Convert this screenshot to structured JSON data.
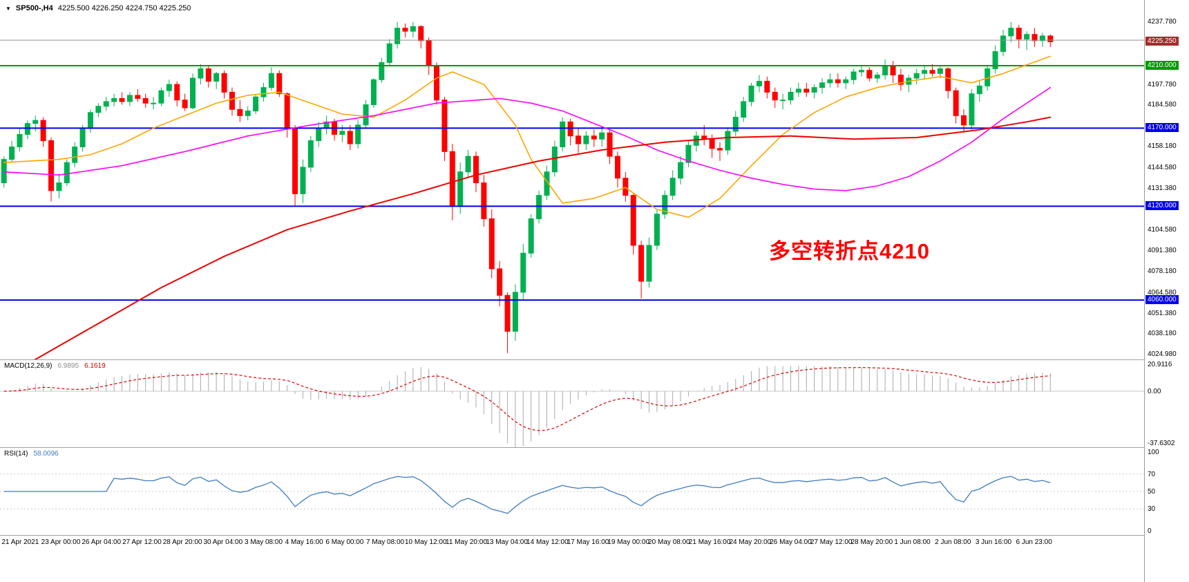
{
  "header": {
    "symbol_period": "SP500-,H4",
    "ohlc": "4225.500 4226.250 4224.750 4225.250"
  },
  "annotation": {
    "text": "多空转折点4210",
    "color": "#ff0000"
  },
  "current_price": {
    "value": 4225.25,
    "label": "4225.250",
    "bg": "#a52a2a"
  },
  "hlines": [
    {
      "name": "gray-level-line",
      "price": 4226.3,
      "color": "#909090",
      "width": 1
    },
    {
      "name": "green-line-4210",
      "price": 4210.0,
      "color": "#009900",
      "width": 2
    },
    {
      "name": "blue-line-4170",
      "price": 4170.0,
      "color": "#0000ee",
      "width": 2
    },
    {
      "name": "blue-line-4120",
      "price": 4120.0,
      "color": "#0000ee",
      "width": 2
    },
    {
      "name": "blue-line-4060",
      "price": 4060.0,
      "color": "#0000ee",
      "width": 2
    }
  ],
  "price_axis": {
    "labels": [
      {
        "text": "4237.780",
        "price": 4237.78,
        "style": "plain"
      },
      {
        "text": "4225.250",
        "price": 4225.25,
        "style": "tag",
        "bg": "#a52a2a"
      },
      {
        "text": "4210.000",
        "price": 4210.0,
        "style": "tag",
        "bg": "#009900"
      },
      {
        "text": "4197.780",
        "price": 4197.78,
        "style": "plain"
      },
      {
        "text": "4184.580",
        "price": 4184.58,
        "style": "plain"
      },
      {
        "text": "4170.000",
        "price": 4170.0,
        "style": "tag",
        "bg": "#0000ee"
      },
      {
        "text": "4158.180",
        "price": 4158.18,
        "style": "plain"
      },
      {
        "text": "4144.580",
        "price": 4144.58,
        "style": "plain"
      },
      {
        "text": "4131.380",
        "price": 4131.38,
        "style": "plain"
      },
      {
        "text": "4120.000",
        "price": 4120.0,
        "style": "tag",
        "bg": "#0000ee"
      },
      {
        "text": "4104.580",
        "price": 4104.58,
        "style": "plain"
      },
      {
        "text": "4091.380",
        "price": 4091.38,
        "style": "plain"
      },
      {
        "text": "4078.180",
        "price": 4078.18,
        "style": "plain"
      },
      {
        "text": "4064.580",
        "price": 4064.58,
        "style": "plain"
      },
      {
        "text": "4060.000",
        "price": 4060.0,
        "style": "tag",
        "bg": "#0000ee"
      },
      {
        "text": "4051.380",
        "price": 4051.38,
        "style": "plain"
      },
      {
        "text": "4038.180",
        "price": 4038.18,
        "style": "plain"
      },
      {
        "text": "4024.980",
        "price": 4024.98,
        "style": "plain"
      }
    ]
  },
  "chart_data": {
    "type": "candlestick",
    "symbol": "SP500-",
    "timeframe": "H4",
    "price_range": {
      "min": 4022.0,
      "max": 4252.0
    },
    "candle_colors": {
      "up": "#00b050",
      "down": "#fe0000"
    },
    "candles": [
      [
        4135,
        4152,
        4132,
        4150
      ],
      [
        4150,
        4162,
        4148,
        4158
      ],
      [
        4158,
        4170,
        4155,
        4166
      ],
      [
        4166,
        4175,
        4163,
        4173
      ],
      [
        4173,
        4178,
        4168,
        4175
      ],
      [
        4175,
        4177,
        4158,
        4162
      ],
      [
        4162,
        4164,
        4123,
        4130
      ],
      [
        4130,
        4141,
        4125,
        4135
      ],
      [
        4135,
        4150,
        4133,
        4148
      ],
      [
        4148,
        4161,
        4145,
        4158
      ],
      [
        4158,
        4172,
        4155,
        4170
      ],
      [
        4170,
        4182,
        4167,
        4180
      ],
      [
        4180,
        4186,
        4177,
        4184
      ],
      [
        4184,
        4190,
        4181,
        4187
      ],
      [
        4187,
        4192,
        4184,
        4189
      ],
      [
        4189,
        4193,
        4185,
        4187
      ],
      [
        4187,
        4193,
        4184,
        4191
      ],
      [
        4191,
        4195,
        4187,
        4189
      ],
      [
        4189,
        4192,
        4183,
        4186
      ],
      [
        4186,
        4190,
        4182,
        4186
      ],
      [
        4186,
        4196,
        4184,
        4194
      ],
      [
        4194,
        4201,
        4190,
        4198
      ],
      [
        4198,
        4200,
        4184,
        4188
      ],
      [
        4188,
        4192,
        4181,
        4183
      ],
      [
        4183,
        4205,
        4182,
        4202
      ],
      [
        4202,
        4211,
        4198,
        4208
      ],
      [
        4208,
        4210,
        4196,
        4200
      ],
      [
        4200,
        4206,
        4195,
        4205
      ],
      [
        4205,
        4207,
        4189,
        4193
      ],
      [
        4193,
        4196,
        4178,
        4182
      ],
      [
        4182,
        4188,
        4174,
        4178
      ],
      [
        4178,
        4184,
        4175,
        4181
      ],
      [
        4181,
        4192,
        4179,
        4190
      ],
      [
        4190,
        4199,
        4187,
        4196
      ],
      [
        4196,
        4209,
        4194,
        4205
      ],
      [
        4205,
        4207,
        4190,
        4192
      ],
      [
        4192,
        4193,
        4164,
        4170
      ],
      [
        4170,
        4172,
        4120,
        4128
      ],
      [
        4128,
        4150,
        4122,
        4145
      ],
      [
        4145,
        4165,
        4142,
        4162
      ],
      [
        4162,
        4174,
        4158,
        4170
      ],
      [
        4170,
        4178,
        4166,
        4174
      ],
      [
        4174,
        4176,
        4162,
        4166
      ],
      [
        4166,
        4172,
        4161,
        4168
      ],
      [
        4168,
        4172,
        4156,
        4160
      ],
      [
        4160,
        4175,
        4157,
        4172
      ],
      [
        4172,
        4188,
        4170,
        4185
      ],
      [
        4185,
        4202,
        4183,
        4201
      ],
      [
        4201,
        4215,
        4199,
        4212
      ],
      [
        4212,
        4227,
        4210,
        4224
      ],
      [
        4224,
        4238,
        4221,
        4234
      ],
      [
        4234,
        4237,
        4228,
        4232
      ],
      [
        4232,
        4238,
        4228,
        4235
      ],
      [
        4235,
        4236,
        4221,
        4226
      ],
      [
        4226,
        4228,
        4204,
        4210
      ],
      [
        4210,
        4212,
        4185,
        4188
      ],
      [
        4188,
        4190,
        4149,
        4155
      ],
      [
        4155,
        4160,
        4111,
        4120
      ],
      [
        4120,
        4148,
        4115,
        4142
      ],
      [
        4142,
        4156,
        4138,
        4152
      ],
      [
        4152,
        4155,
        4129,
        4135
      ],
      [
        4135,
        4140,
        4107,
        4112
      ],
      [
        4112,
        4118,
        4074,
        4080
      ],
      [
        4080,
        4085,
        4056,
        4063
      ],
      [
        4063,
        4065,
        4026,
        4040
      ],
      [
        4040,
        4070,
        4034,
        4065
      ],
      [
        4065,
        4096,
        4060,
        4090
      ],
      [
        4090,
        4115,
        4087,
        4112
      ],
      [
        4112,
        4130,
        4109,
        4127
      ],
      [
        4127,
        4146,
        4124,
        4142
      ],
      [
        4142,
        4162,
        4139,
        4158
      ],
      [
        4158,
        4177,
        4155,
        4174
      ],
      [
        4174,
        4176,
        4159,
        4165
      ],
      [
        4165,
        4170,
        4154,
        4160
      ],
      [
        4160,
        4168,
        4156,
        4165
      ],
      [
        4165,
        4169,
        4158,
        4163
      ],
      [
        4163,
        4171,
        4158,
        4167
      ],
      [
        4167,
        4169,
        4147,
        4152
      ],
      [
        4152,
        4155,
        4132,
        4138
      ],
      [
        4138,
        4142,
        4123,
        4127
      ],
      [
        4127,
        4128,
        4089,
        4095
      ],
      [
        4095,
        4098,
        4061,
        4072
      ],
      [
        4072,
        4100,
        4068,
        4095
      ],
      [
        4095,
        4118,
        4092,
        4115
      ],
      [
        4115,
        4130,
        4112,
        4127
      ],
      [
        4127,
        4143,
        4124,
        4138
      ],
      [
        4138,
        4152,
        4134,
        4148
      ],
      [
        4148,
        4162,
        4145,
        4159
      ],
      [
        4159,
        4168,
        4155,
        4165
      ],
      [
        4165,
        4172,
        4159,
        4163
      ],
      [
        4163,
        4166,
        4151,
        4157
      ],
      [
        4157,
        4161,
        4149,
        4156
      ],
      [
        4156,
        4170,
        4153,
        4168
      ],
      [
        4168,
        4181,
        4165,
        4177
      ],
      [
        4177,
        4190,
        4174,
        4187
      ],
      [
        4187,
        4199,
        4184,
        4197
      ],
      [
        4197,
        4204,
        4193,
        4200
      ],
      [
        4200,
        4203,
        4189,
        4193
      ],
      [
        4193,
        4196,
        4183,
        4188
      ],
      [
        4188,
        4192,
        4182,
        4188
      ],
      [
        4188,
        4196,
        4185,
        4193
      ],
      [
        4193,
        4199,
        4190,
        4195
      ],
      [
        4195,
        4199,
        4190,
        4193
      ],
      [
        4193,
        4198,
        4189,
        4196
      ],
      [
        4196,
        4202,
        4192,
        4199
      ],
      [
        4199,
        4205,
        4196,
        4201
      ],
      [
        4201,
        4205,
        4196,
        4199
      ],
      [
        4199,
        4203,
        4195,
        4201
      ],
      [
        4201,
        4208,
        4198,
        4206
      ],
      [
        4206,
        4210,
        4203,
        4207
      ],
      [
        4207,
        4209,
        4200,
        4202
      ],
      [
        4202,
        4206,
        4199,
        4204
      ],
      [
        4204,
        4214,
        4201,
        4210
      ],
      [
        4210,
        4213,
        4199,
        4204
      ],
      [
        4204,
        4208,
        4194,
        4198
      ],
      [
        4198,
        4204,
        4193,
        4202
      ],
      [
        4202,
        4208,
        4198,
        4205
      ],
      [
        4205,
        4210,
        4201,
        4207
      ],
      [
        4207,
        4211,
        4203,
        4205
      ],
      [
        4205,
        4210,
        4202,
        4208
      ],
      [
        4208,
        4209,
        4189,
        4194
      ],
      [
        4194,
        4196,
        4173,
        4178
      ],
      [
        4178,
        4182,
        4167,
        4172
      ],
      [
        4172,
        4195,
        4169,
        4192
      ],
      [
        4192,
        4200,
        4187,
        4197
      ],
      [
        4197,
        4210,
        4194,
        4208
      ],
      [
        4208,
        4223,
        4205,
        4219
      ],
      [
        4219,
        4233,
        4216,
        4229
      ],
      [
        4229,
        4238,
        4225,
        4234
      ],
      [
        4234,
        4236,
        4221,
        4227
      ],
      [
        4227,
        4232,
        4220,
        4230
      ],
      [
        4230,
        4234,
        4222,
        4226
      ],
      [
        4226,
        4231,
        4222,
        4229
      ],
      [
        4229,
        4230,
        4222,
        4225.25
      ]
    ],
    "ma_lines": [
      {
        "name": "ma-fast-orange",
        "color": "#ffa500",
        "width": 1.6,
        "points": [
          [
            0,
            4148
          ],
          [
            7,
            4150
          ],
          [
            11,
            4153
          ],
          [
            15,
            4160
          ],
          [
            19,
            4170
          ],
          [
            23,
            4178
          ],
          [
            27,
            4186
          ],
          [
            31,
            4191
          ],
          [
            35,
            4193
          ],
          [
            39,
            4186
          ],
          [
            43,
            4179
          ],
          [
            47,
            4177
          ],
          [
            51,
            4188
          ],
          [
            55,
            4202
          ],
          [
            57,
            4206
          ],
          [
            61,
            4198
          ],
          [
            65,
            4172
          ],
          [
            67,
            4150
          ],
          [
            71,
            4122
          ],
          [
            75,
            4125
          ],
          [
            79,
            4132
          ],
          [
            83,
            4118
          ],
          [
            87,
            4113
          ],
          [
            91,
            4125
          ],
          [
            95,
            4146
          ],
          [
            99,
            4166
          ],
          [
            103,
            4180
          ],
          [
            107,
            4190
          ],
          [
            111,
            4196
          ],
          [
            115,
            4200
          ],
          [
            119,
            4203
          ],
          [
            123,
            4199
          ],
          [
            127,
            4205
          ],
          [
            133,
            4216
          ]
        ]
      },
      {
        "name": "ma-mid-magenta",
        "color": "#ff00ff",
        "width": 1.6,
        "points": [
          [
            0,
            4142
          ],
          [
            7,
            4140
          ],
          [
            15,
            4146
          ],
          [
            23,
            4155
          ],
          [
            31,
            4165
          ],
          [
            39,
            4172
          ],
          [
            47,
            4178
          ],
          [
            55,
            4186
          ],
          [
            63,
            4189
          ],
          [
            67,
            4186
          ],
          [
            71,
            4181
          ],
          [
            75,
            4173
          ],
          [
            79,
            4165
          ],
          [
            83,
            4156
          ],
          [
            87,
            4149
          ],
          [
            91,
            4143
          ],
          [
            95,
            4138
          ],
          [
            99,
            4134
          ],
          [
            103,
            4131
          ],
          [
            107,
            4130
          ],
          [
            111,
            4133
          ],
          [
            115,
            4139
          ],
          [
            119,
            4149
          ],
          [
            123,
            4161
          ],
          [
            127,
            4176
          ],
          [
            133,
            4196
          ]
        ]
      },
      {
        "name": "ma-slow-red",
        "color": "#ee0000",
        "width": 2,
        "points": [
          [
            0,
            4012
          ],
          [
            4,
            4022
          ],
          [
            12,
            4045
          ],
          [
            20,
            4068
          ],
          [
            28,
            4088
          ],
          [
            36,
            4105
          ],
          [
            44,
            4117
          ],
          [
            52,
            4128
          ],
          [
            60,
            4140
          ],
          [
            68,
            4149
          ],
          [
            76,
            4156
          ],
          [
            84,
            4161
          ],
          [
            92,
            4164
          ],
          [
            100,
            4165
          ],
          [
            108,
            4163
          ],
          [
            116,
            4164
          ],
          [
            124,
            4169
          ],
          [
            130,
            4174
          ],
          [
            133,
            4177
          ]
        ]
      }
    ],
    "x_labels": [
      "21 Apr 2021",
      "23 Apr 00:00",
      "26 Apr 04:00",
      "27 Apr 12:00",
      "28 Apr 20:00",
      "30 Apr 04:00",
      "3 May 08:00",
      "4 May 16:00",
      "6 May 00:00",
      "7 May 08:00",
      "10 May 12:00",
      "11 May 20:00",
      "13 May 04:00",
      "14 May 12:00",
      "17 May 16:00",
      "19 May 00:00",
      "20 May 08:00",
      "21 May 16:00",
      "24 May 20:00",
      "26 May 04:00",
      "27 May 12:00",
      "28 May 20:00",
      "1 Jun 08:00",
      "2 Jun 08:00",
      "3 Jun 16:00",
      "6 Jun 23:00"
    ],
    "macd": {
      "label": "MACD(12,26,9)",
      "main_value": "6.9895",
      "signal_value": "6.1619",
      "params": {
        "fast": 12,
        "slow": 26,
        "signal": 9
      },
      "range": {
        "min": -37.6302,
        "max": 20.9116
      },
      "axis_labels": [
        {
          "text": "20.9116",
          "value": 20.9116
        },
        {
          "text": "0.00",
          "value": 0
        },
        {
          "text": "-37.6302",
          "value": -37.6302
        }
      ],
      "colors": {
        "histogram": "#a9a9a9",
        "signal": "#dd0000"
      }
    },
    "rsi": {
      "label": "RSI(14)",
      "value": "58.0096",
      "period": 14,
      "range": {
        "min": 0,
        "max": 100
      },
      "levels": [
        30,
        50,
        70
      ],
      "axis_labels": [
        {
          "text": "100",
          "value": 100
        },
        {
          "text": "70",
          "value": 70
        },
        {
          "text": "50",
          "value": 50
        },
        {
          "text": "30",
          "value": 30
        },
        {
          "text": "0",
          "value": 0
        }
      ],
      "colors": {
        "line": "#3e7bc4",
        "levels": "#c8c8c8"
      }
    }
  }
}
